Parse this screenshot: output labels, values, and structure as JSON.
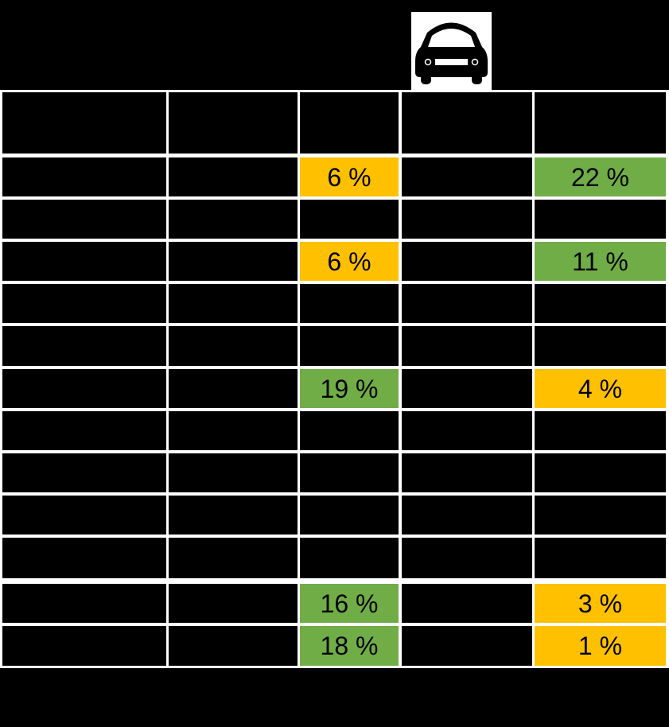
{
  "header": {
    "icon": "car-front-icon"
  },
  "colors": {
    "background": "#000000",
    "grid_lines": "#FFFFFF",
    "highlight_orange": "#FFC000",
    "highlight_green": "#70AD47"
  },
  "table": {
    "columns": 5,
    "rows": [
      {
        "cells": [
          "",
          "",
          "",
          "",
          ""
        ],
        "fills": [
          "",
          "",
          "",
          "",
          ""
        ]
      },
      {
        "cells": [
          "",
          "",
          "6 %",
          "",
          "22 %"
        ],
        "fills": [
          "",
          "",
          "orange",
          "",
          "green"
        ]
      },
      {
        "cells": [
          "",
          "",
          "",
          "",
          ""
        ],
        "fills": [
          "",
          "",
          "",
          "",
          ""
        ]
      },
      {
        "cells": [
          "",
          "",
          "6 %",
          "",
          "11 %"
        ],
        "fills": [
          "",
          "",
          "orange",
          "",
          "green"
        ]
      },
      {
        "cells": [
          "",
          "",
          "",
          "",
          ""
        ],
        "fills": [
          "",
          "",
          "",
          "",
          ""
        ]
      },
      {
        "cells": [
          "",
          "",
          "",
          "",
          ""
        ],
        "fills": [
          "",
          "",
          "",
          "",
          ""
        ]
      },
      {
        "cells": [
          "",
          "",
          "19 %",
          "",
          "4 %"
        ],
        "fills": [
          "",
          "",
          "green",
          "",
          "orange"
        ]
      },
      {
        "cells": [
          "",
          "",
          "",
          "",
          ""
        ],
        "fills": [
          "",
          "",
          "",
          "",
          ""
        ]
      },
      {
        "cells": [
          "",
          "",
          "",
          "",
          ""
        ],
        "fills": [
          "",
          "",
          "",
          "",
          ""
        ]
      },
      {
        "cells": [
          "",
          "",
          "",
          "",
          ""
        ],
        "fills": [
          "",
          "",
          "",
          "",
          ""
        ]
      },
      {
        "cells": [
          "",
          "",
          "",
          "",
          ""
        ],
        "fills": [
          "",
          "",
          "",
          "",
          ""
        ]
      },
      {
        "cells": [
          "",
          "",
          "16 %",
          "",
          "3 %"
        ],
        "fills": [
          "",
          "",
          "green",
          "",
          "orange"
        ]
      },
      {
        "cells": [
          "",
          "",
          "18 %",
          "",
          "1 %"
        ],
        "fills": [
          "",
          "",
          "green",
          "",
          "orange"
        ]
      }
    ]
  }
}
